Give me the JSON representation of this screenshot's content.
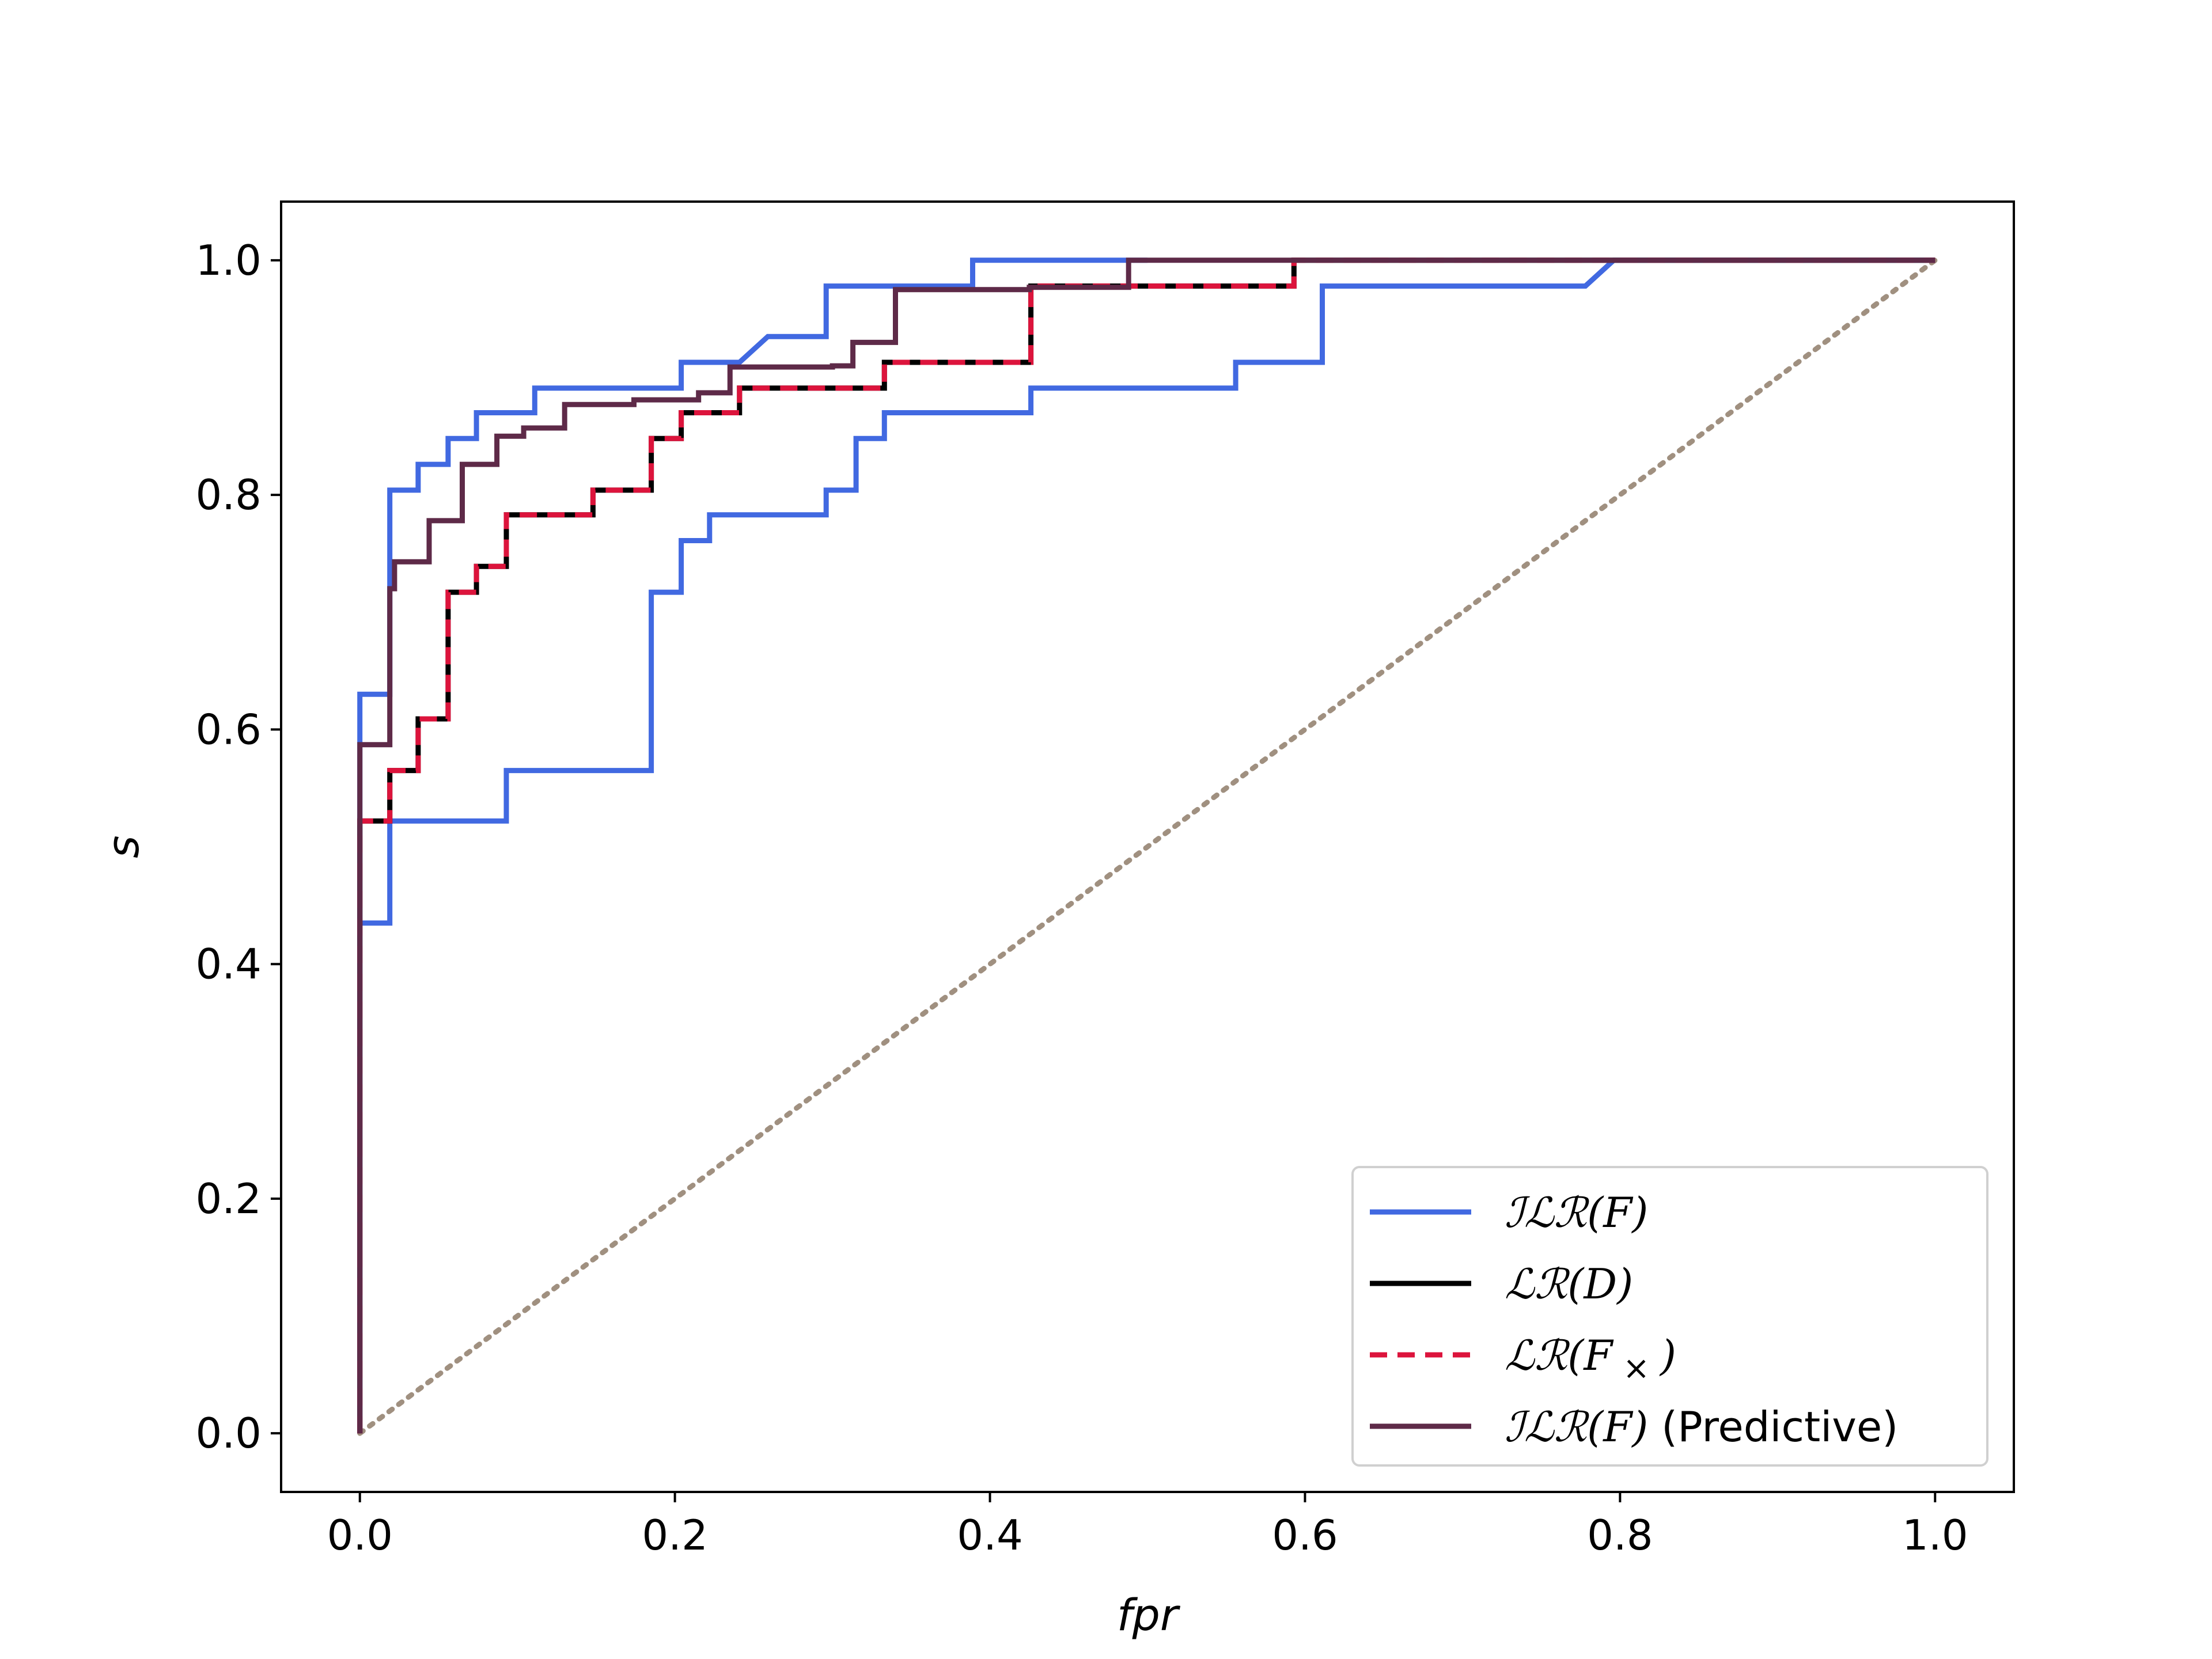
{
  "chart_data": {
    "type": "line",
    "title": "",
    "xlabel": "fpr",
    "ylabel": "s",
    "xlim": [
      -0.05,
      1.05
    ],
    "ylim": [
      -0.05,
      1.05
    ],
    "grid": false,
    "legend_position": "lower-right",
    "xticks": [
      0.0,
      0.2,
      0.4,
      0.6,
      0.8,
      1.0
    ],
    "yticks": [
      0.0,
      0.2,
      0.4,
      0.6,
      0.8,
      1.0
    ],
    "xtick_labels": [
      "0.0",
      "0.2",
      "0.4",
      "0.6",
      "0.8",
      "1.0"
    ],
    "ytick_labels": [
      "0.0",
      "0.2",
      "0.4",
      "0.6",
      "0.8",
      "1.0"
    ],
    "series": [
      {
        "name": "ILR(F)",
        "label_parts": [
          "ℐℒℛ(",
          "F",
          ")"
        ],
        "color": "#4169e1",
        "dash": "solid",
        "points": [
          [
            0,
            0
          ],
          [
            0,
            0.435
          ],
          [
            0.019,
            0.435
          ],
          [
            0.019,
            0.522
          ],
          [
            0.093,
            0.522
          ],
          [
            0.093,
            0.565
          ],
          [
            0.185,
            0.565
          ],
          [
            0.185,
            0.717
          ],
          [
            0.204,
            0.717
          ],
          [
            0.204,
            0.761
          ],
          [
            0.222,
            0.761
          ],
          [
            0.222,
            0.783
          ],
          [
            0.296,
            0.783
          ],
          [
            0.296,
            0.804
          ],
          [
            0.315,
            0.804
          ],
          [
            0.315,
            0.848
          ],
          [
            0.333,
            0.848
          ],
          [
            0.333,
            0.87
          ],
          [
            0.426,
            0.87
          ],
          [
            0.426,
            0.891
          ],
          [
            0.556,
            0.891
          ],
          [
            0.556,
            0.913
          ],
          [
            0.611,
            0.913
          ],
          [
            0.611,
            0.978
          ],
          [
            0.778,
            0.978
          ],
          [
            0.796,
            1.0
          ],
          [
            1.0,
            1.0
          ]
        ]
      },
      {
        "name": "ILR(F) second curve",
        "color": "#4169e1",
        "dash": "solid",
        "legend": false,
        "points": [
          [
            0,
            0.435
          ],
          [
            0,
            0.63
          ],
          [
            0.019,
            0.63
          ],
          [
            0.019,
            0.804
          ],
          [
            0.037,
            0.804
          ],
          [
            0.037,
            0.826
          ],
          [
            0.056,
            0.826
          ],
          [
            0.056,
            0.848
          ],
          [
            0.074,
            0.848
          ],
          [
            0.074,
            0.87
          ],
          [
            0.111,
            0.87
          ],
          [
            0.111,
            0.891
          ],
          [
            0.204,
            0.891
          ],
          [
            0.204,
            0.913
          ],
          [
            0.241,
            0.913
          ],
          [
            0.259,
            0.935
          ],
          [
            0.296,
            0.935
          ],
          [
            0.296,
            0.978
          ],
          [
            0.389,
            0.978
          ],
          [
            0.389,
            1.0
          ],
          [
            0.5,
            1.0
          ]
        ]
      },
      {
        "name": "LR(D)",
        "label_parts": [
          "ℒℛ(",
          "D",
          ")"
        ],
        "color": "#000000",
        "dash": "solid",
        "points": [
          [
            0,
            0
          ],
          [
            0,
            0.522
          ],
          [
            0.019,
            0.522
          ],
          [
            0.019,
            0.565
          ],
          [
            0.037,
            0.565
          ],
          [
            0.037,
            0.609
          ],
          [
            0.056,
            0.609
          ],
          [
            0.056,
            0.717
          ],
          [
            0.074,
            0.717
          ],
          [
            0.074,
            0.739
          ],
          [
            0.093,
            0.739
          ],
          [
            0.093,
            0.783
          ],
          [
            0.148,
            0.783
          ],
          [
            0.148,
            0.804
          ],
          [
            0.185,
            0.804
          ],
          [
            0.185,
            0.848
          ],
          [
            0.204,
            0.848
          ],
          [
            0.204,
            0.87
          ],
          [
            0.241,
            0.87
          ],
          [
            0.241,
            0.891
          ],
          [
            0.333,
            0.891
          ],
          [
            0.333,
            0.913
          ],
          [
            0.426,
            0.913
          ],
          [
            0.426,
            0.978
          ],
          [
            0.593,
            0.978
          ],
          [
            0.593,
            1.0
          ],
          [
            1.0,
            1.0
          ]
        ]
      },
      {
        "name": "LR(F×)",
        "label_parts": [
          "ℒℛ(",
          "F",
          ")"
        ],
        "label_sub": "×",
        "color": "#dc143c",
        "dash": "dashed",
        "points": [
          [
            0,
            0
          ],
          [
            0,
            0.522
          ],
          [
            0.019,
            0.522
          ],
          [
            0.019,
            0.565
          ],
          [
            0.037,
            0.565
          ],
          [
            0.037,
            0.609
          ],
          [
            0.056,
            0.609
          ],
          [
            0.056,
            0.717
          ],
          [
            0.074,
            0.717
          ],
          [
            0.074,
            0.739
          ],
          [
            0.093,
            0.739
          ],
          [
            0.093,
            0.783
          ],
          [
            0.148,
            0.783
          ],
          [
            0.148,
            0.804
          ],
          [
            0.185,
            0.804
          ],
          [
            0.185,
            0.848
          ],
          [
            0.204,
            0.848
          ],
          [
            0.204,
            0.87
          ],
          [
            0.241,
            0.87
          ],
          [
            0.241,
            0.891
          ],
          [
            0.333,
            0.891
          ],
          [
            0.333,
            0.913
          ],
          [
            0.426,
            0.913
          ],
          [
            0.426,
            0.978
          ],
          [
            0.593,
            0.978
          ],
          [
            0.593,
            1.0
          ],
          [
            1.0,
            1.0
          ]
        ]
      },
      {
        "name": "ILR(F) (Predictive)",
        "label_parts": [
          "ℐℒℛ(",
          "F",
          ")"
        ],
        "label_suffix": " (Predictive)",
        "color": "#5e2a48",
        "dash": "solid",
        "points": [
          [
            0,
            0
          ],
          [
            0,
            0.587
          ],
          [
            0.019,
            0.587
          ],
          [
            0.019,
            0.72
          ],
          [
            0.022,
            0.72
          ],
          [
            0.022,
            0.743
          ],
          [
            0.044,
            0.743
          ],
          [
            0.044,
            0.778
          ],
          [
            0.065,
            0.778
          ],
          [
            0.065,
            0.826
          ],
          [
            0.087,
            0.826
          ],
          [
            0.087,
            0.85
          ],
          [
            0.104,
            0.85
          ],
          [
            0.104,
            0.857
          ],
          [
            0.13,
            0.857
          ],
          [
            0.13,
            0.877
          ],
          [
            0.174,
            0.877
          ],
          [
            0.174,
            0.881
          ],
          [
            0.215,
            0.881
          ],
          [
            0.215,
            0.887
          ],
          [
            0.235,
            0.887
          ],
          [
            0.235,
            0.909
          ],
          [
            0.3,
            0.909
          ],
          [
            0.3,
            0.91
          ],
          [
            0.313,
            0.91
          ],
          [
            0.313,
            0.93
          ],
          [
            0.34,
            0.93
          ],
          [
            0.34,
            0.975
          ],
          [
            0.425,
            0.975
          ],
          [
            0.425,
            0.977
          ],
          [
            0.488,
            0.977
          ],
          [
            0.488,
            1.0
          ],
          [
            1.0,
            1.0
          ]
        ]
      },
      {
        "name": "chance",
        "color": "#a09080",
        "dash": "dotted",
        "legend": false,
        "points": [
          [
            0,
            0
          ],
          [
            1,
            1
          ]
        ]
      }
    ]
  }
}
